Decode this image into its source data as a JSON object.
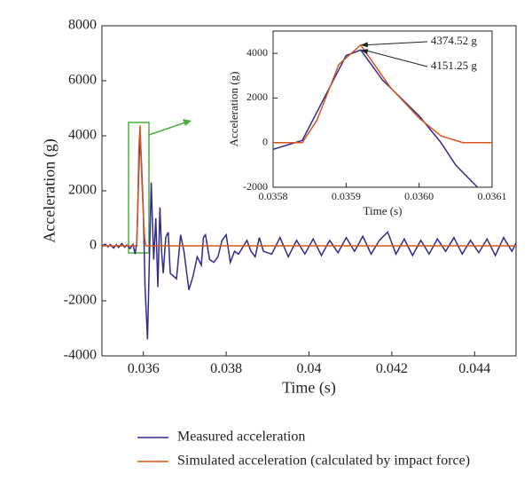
{
  "chart_data": [
    {
      "type": "line",
      "xlabel": "Time (s)",
      "ylabel": "Acceleration (g)",
      "xlim": [
        0.035,
        0.045
      ],
      "xticks": [
        0.036,
        0.038,
        0.04,
        0.042,
        0.044
      ],
      "ylim": [
        -4000,
        8000
      ],
      "yticks": [
        -4000,
        -2000,
        0,
        2000,
        4000,
        6000,
        8000
      ],
      "legend": "bottom",
      "series": [
        {
          "name": "Measured acceleration",
          "color": "#2e2c8f",
          "x": [
            0.035,
            0.03508,
            0.03515,
            0.0352,
            0.03528,
            0.03535,
            0.0354,
            0.03548,
            0.03555,
            0.0356,
            0.03568,
            0.03575,
            0.0358,
            0.03584,
            0.03588,
            0.03592,
            0.03596,
            0.036,
            0.03604,
            0.0361,
            0.03614,
            0.03619,
            0.03622,
            0.03625,
            0.0363,
            0.03635,
            0.0364,
            0.03644,
            0.03648,
            0.03654,
            0.0366,
            0.03665,
            0.0368,
            0.0369,
            0.03698,
            0.0371,
            0.0372,
            0.0373,
            0.0374,
            0.03745,
            0.0375,
            0.0376,
            0.0377,
            0.0378,
            0.0379,
            0.038,
            0.0381,
            0.0382,
            0.0383,
            0.0385,
            0.0386,
            0.0387,
            0.0388,
            0.0389,
            0.0391,
            0.0393,
            0.0395,
            0.0397,
            0.0399,
            0.0401,
            0.0403,
            0.0405,
            0.0407,
            0.0409,
            0.0411,
            0.0413,
            0.0415,
            0.0417,
            0.0419,
            0.0421,
            0.0423,
            0.0425,
            0.0427,
            0.0429,
            0.0431,
            0.0433,
            0.0435,
            0.0437,
            0.0439,
            0.0441,
            0.0443,
            0.0445,
            0.0447,
            0.0449,
            0.045
          ],
          "values": [
            0,
            60,
            -40,
            50,
            -80,
            40,
            -60,
            80,
            -50,
            30,
            -100,
            50,
            -300,
            100,
            2200,
            4151.25,
            2800,
            1200,
            -1500,
            -3400,
            -800,
            2300,
            800,
            -500,
            1000,
            -1500,
            1400,
            -200,
            -1000,
            300,
            500,
            -1000,
            -1200,
            400,
            -200,
            -1600,
            -1100,
            -400,
            -700,
            300,
            400,
            -500,
            -600,
            -400,
            200,
            400,
            -600,
            -200,
            -300,
            200,
            -200,
            -400,
            300,
            -200,
            -300,
            300,
            -400,
            200,
            -300,
            250,
            -350,
            200,
            -250,
            300,
            -200,
            350,
            -300,
            200,
            500,
            -300,
            250,
            -350,
            200,
            -300,
            250,
            -200,
            300,
            -300,
            200,
            -250,
            250,
            -350,
            300,
            -200,
            100
          ]
        },
        {
          "name": "Simulated acceleration (calculated by impact force)",
          "color": "#d8541c",
          "x": [
            0.035,
            0.0358,
            0.03584,
            0.03586,
            0.03589,
            0.03592,
            0.03596,
            0.036,
            0.03603,
            0.03606,
            0.045
          ],
          "values": [
            0,
            0,
            0,
            1000,
            3500,
            4374.52,
            2500,
            1100,
            300,
            0,
            0
          ]
        }
      ]
    },
    {
      "type": "line",
      "xlabel": "Time (s)",
      "ylabel": "Acceleration (g)",
      "xlim": [
        0.0358,
        0.0361
      ],
      "xticks": [
        0.0358,
        0.0359,
        {
          "value": 0.036,
          "label": "0.0360"
        },
        0.0361
      ],
      "ylim": [
        -2000,
        5000
      ],
      "yticks": [
        -2000,
        0,
        2000,
        4000
      ],
      "annotations": [
        {
          "text": "4374.52 g",
          "color": "#d8541c"
        },
        {
          "text": "4151.25 g",
          "color": "#2e2c8f"
        }
      ],
      "series": [
        {
          "color": "#2e2c8f",
          "x": [
            0.0358,
            0.03584,
            0.03587,
            0.0359,
            0.03592,
            0.03595,
            0.036,
            0.03603,
            0.03605,
            0.03608
          ],
          "values": [
            -300,
            100,
            2000,
            3900,
            4151.25,
            2800,
            1200,
            0,
            -1000,
            -2000
          ]
        },
        {
          "color": "#d8541c",
          "x": [
            0.0358,
            0.03584,
            0.03586,
            0.03589,
            0.03592,
            0.03596,
            0.036,
            0.03603,
            0.03606,
            0.0361
          ],
          "values": [
            0,
            0,
            1000,
            3500,
            4374.52,
            2500,
            1100,
            300,
            0,
            0
          ]
        }
      ]
    }
  ]
}
